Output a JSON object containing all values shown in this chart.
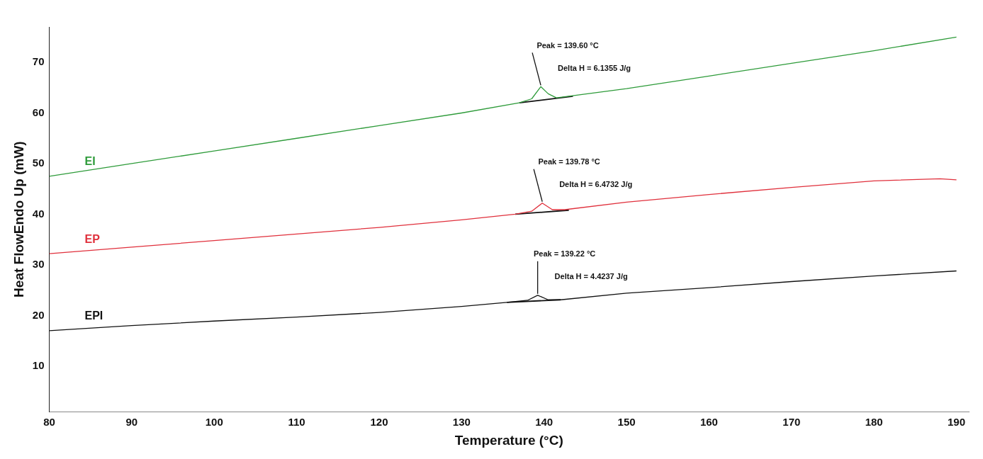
{
  "chart_data": {
    "type": "line",
    "xlabel": "Temperature (°C)",
    "ylabel": "Heat FlowEndo Up (mW)",
    "xlim": [
      80,
      191.5
    ],
    "ylim": [
      1,
      77
    ],
    "xticks": [
      80,
      90,
      100,
      110,
      120,
      130,
      140,
      150,
      160,
      170,
      180,
      190
    ],
    "yticks": [
      10,
      20,
      30,
      40,
      50,
      60,
      70
    ],
    "grid": false,
    "legend": false,
    "marker": "none",
    "line_style": "solid",
    "series": [
      {
        "name": "EI",
        "color": "#2e9b3a",
        "x": [
          80,
          90,
          100,
          110,
          120,
          130,
          137,
          138.5,
          139.6,
          140.5,
          141.5,
          150,
          160,
          170,
          180,
          190
        ],
        "values": [
          47.5,
          50.0,
          52.5,
          55.0,
          57.5,
          60.0,
          62.0,
          62.8,
          65.2,
          63.8,
          63.0,
          64.8,
          67.3,
          69.8,
          72.3,
          75.0
        ]
      },
      {
        "name": "EP",
        "color": "#e0303c",
        "x": [
          80,
          90,
          100,
          110,
          120,
          130,
          136.5,
          138.5,
          139.78,
          141,
          142.5,
          150,
          160,
          170,
          180,
          188,
          190
        ],
        "values": [
          32.2,
          33.5,
          34.8,
          36.1,
          37.4,
          38.9,
          40.0,
          40.6,
          42.2,
          40.9,
          40.9,
          42.4,
          43.9,
          45.3,
          46.6,
          47.0,
          46.8
        ]
      },
      {
        "name": "EPI",
        "color": "#111111",
        "x": [
          80,
          90,
          100,
          110,
          120,
          130,
          135.5,
          138,
          139.22,
          140.5,
          142,
          150,
          160,
          170,
          180,
          190
        ],
        "values": [
          17.0,
          18.0,
          18.9,
          19.7,
          20.6,
          21.8,
          22.6,
          23.0,
          24.0,
          23.1,
          23.1,
          24.4,
          25.5,
          26.7,
          27.8,
          28.8
        ]
      },
      {
        "color": "#111111",
        "x": [
          137,
          143.5
        ],
        "values": [
          62.0,
          63.3
        ]
      },
      {
        "color": "#111111",
        "x": [
          136.5,
          143
        ],
        "values": [
          40.0,
          40.8
        ]
      },
      {
        "color": "#111111",
        "x": [
          135.5,
          142
        ],
        "values": [
          22.6,
          23.1
        ]
      }
    ],
    "annotations": [
      {
        "text": "Peak = 139.60 °C",
        "x": 139.6,
        "y": 65.2
      },
      {
        "text": "Delta H = 6.1355 J/g",
        "x": 139.6,
        "y": 65.2
      },
      {
        "text": "Peak = 139.78 °C",
        "x": 139.78,
        "y": 42.2
      },
      {
        "text": "Delta H = 6.4732 J/g",
        "x": 139.78,
        "y": 42.2
      },
      {
        "text": "Peak = 139.22 °C",
        "x": 139.22,
        "y": 24.0
      },
      {
        "text": "Delta H = 4.4237 J/g",
        "x": 139.22,
        "y": 24.0
      }
    ]
  }
}
